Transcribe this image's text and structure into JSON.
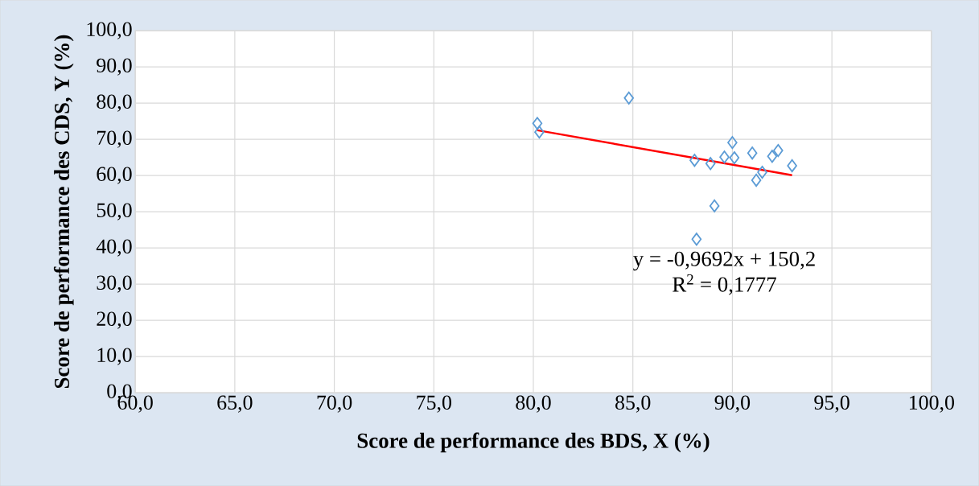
{
  "chart_data": {
    "type": "scatter",
    "xlabel": "Score de performance des BDS, X (%)",
    "ylabel": "Score de performance des CDS, Y (%)",
    "xlim": [
      60,
      100
    ],
    "ylim": [
      0,
      100
    ],
    "xticks": [
      {
        "value": 60,
        "label": "60,0"
      },
      {
        "value": 65,
        "label": "65,0"
      },
      {
        "value": 70,
        "label": "70,0"
      },
      {
        "value": 75,
        "label": "75,0"
      },
      {
        "value": 80,
        "label": "80,0"
      },
      {
        "value": 85,
        "label": "85,0"
      },
      {
        "value": 90,
        "label": "90,0"
      },
      {
        "value": 95,
        "label": "95,0"
      },
      {
        "value": 100,
        "label": "100,0"
      }
    ],
    "yticks": [
      {
        "value": 0,
        "label": "0,0"
      },
      {
        "value": 10,
        "label": "10,0"
      },
      {
        "value": 20,
        "label": "20,0"
      },
      {
        "value": 30,
        "label": "30,0"
      },
      {
        "value": 40,
        "label": "40,0"
      },
      {
        "value": 50,
        "label": "50,0"
      },
      {
        "value": 60,
        "label": "60,0"
      },
      {
        "value": 70,
        "label": "70,0"
      },
      {
        "value": 80,
        "label": "80,0"
      },
      {
        "value": 90,
        "label": "90,0"
      },
      {
        "value": 100,
        "label": "100,0"
      }
    ],
    "grid": true,
    "marker": "diamond",
    "series": [
      {
        "type": "scatter",
        "color": "#5b9bd5",
        "x": [
          80.2,
          80.3,
          84.8,
          88.1,
          88.9,
          89.6,
          90.0,
          90.1,
          91.0,
          91.2,
          91.5,
          92.0,
          92.3,
          93.0,
          89.1,
          88.2
        ],
        "values": [
          74.4,
          72.0,
          81.4,
          64.2,
          63.3,
          65.1,
          69.1,
          64.9,
          66.2,
          58.7,
          60.9,
          65.3,
          66.9,
          62.7,
          51.6,
          42.4
        ]
      },
      {
        "type": "line",
        "color": "#ff0000",
        "marker": "none",
        "x": [
          80.2,
          93.0
        ],
        "values": [
          72.5,
          60.1
        ]
      }
    ],
    "annotations": [
      "y = -0,9692x + 150,2",
      "R$^{2}$ = 0,1777"
    ]
  }
}
